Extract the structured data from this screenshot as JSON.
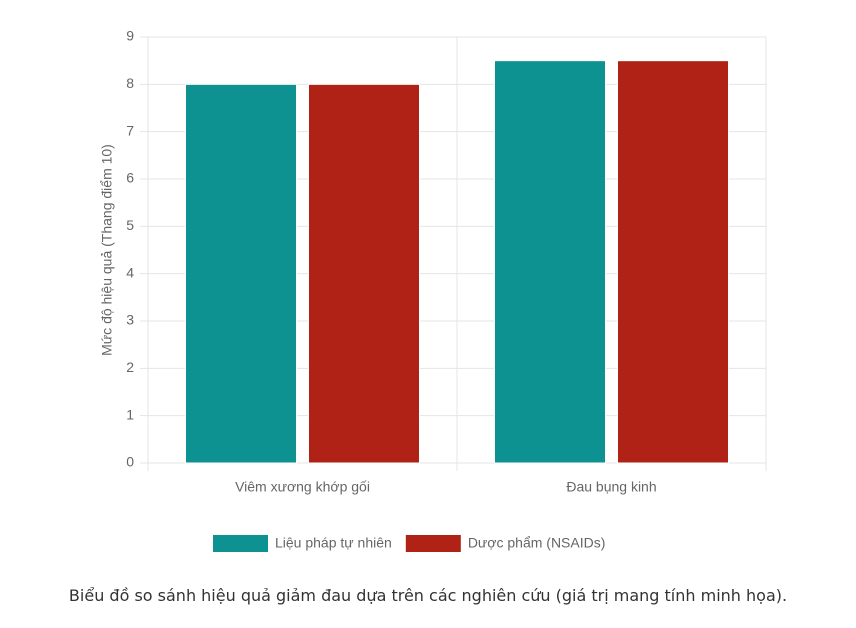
{
  "chart_data": {
    "type": "bar",
    "y_label": "Mức độ hiệu quả (Thang điểm 10)",
    "categories": [
      "Viêm xương khớp gối",
      "Đau bụng kinh"
    ],
    "series": [
      {
        "name": "Liệu pháp tự nhiên",
        "color": "#0d9191",
        "values": [
          8,
          8.5
        ]
      },
      {
        "name": "Dược phẩm (NSAIDs)",
        "color": "#b02116",
        "values": [
          8,
          8.5
        ]
      }
    ],
    "ylim": [
      0,
      9
    ],
    "yticks": [
      0,
      1,
      2,
      3,
      4,
      5,
      6,
      7,
      8,
      9
    ],
    "grid": true,
    "legend": "bottom",
    "caption": "Biểu đồ so sánh hiệu quả giảm đau dựa trên các nghiên cứu (giá trị mang tính minh họa)."
  }
}
